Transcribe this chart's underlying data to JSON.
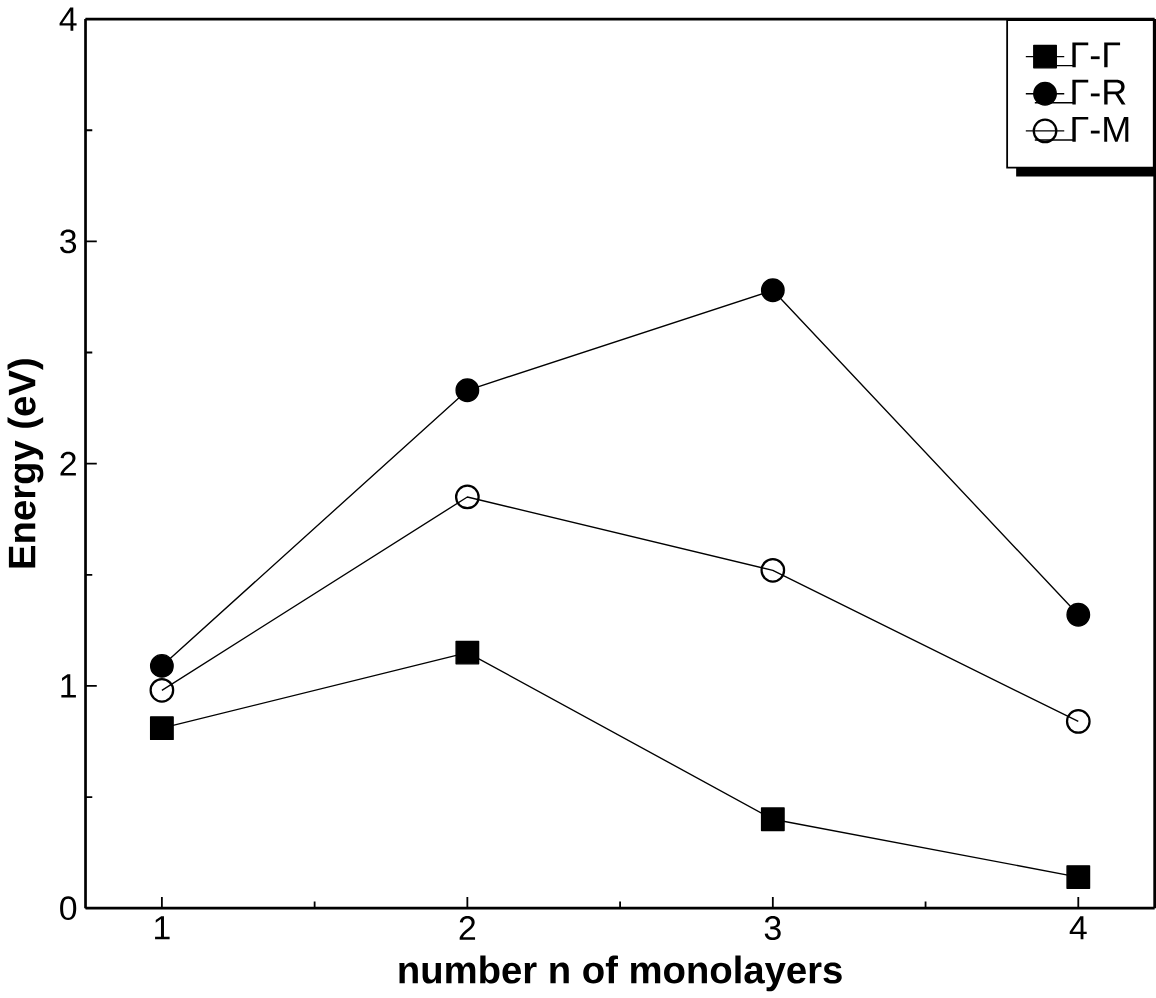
{
  "chart_data": {
    "type": "line",
    "xlabel": "number n of monolayers",
    "ylabel": "Energy (eV)",
    "x": [
      1,
      2,
      3,
      4
    ],
    "series": [
      {
        "name": "Γ-Γ",
        "color": "#000000",
        "marker": "square",
        "values": [
          0.81,
          1.15,
          0.4,
          0.14
        ]
      },
      {
        "name": "Γ-R",
        "color": "#000000",
        "marker": "circle",
        "values": [
          1.09,
          2.33,
          2.78,
          1.32
        ]
      },
      {
        "name": "Γ-M",
        "color": "#000000",
        "marker": "open circle",
        "values": [
          0.98,
          1.85,
          1.52,
          0.84
        ]
      }
    ],
    "xlim": [
      0.75,
      4.25
    ],
    "ylim": [
      0,
      4
    ],
    "xticks": [
      1,
      2,
      3,
      4
    ],
    "yticks": [
      0,
      1,
      2,
      3,
      4
    ],
    "grid": false,
    "legend": "top right",
    "line_style": "solid"
  }
}
